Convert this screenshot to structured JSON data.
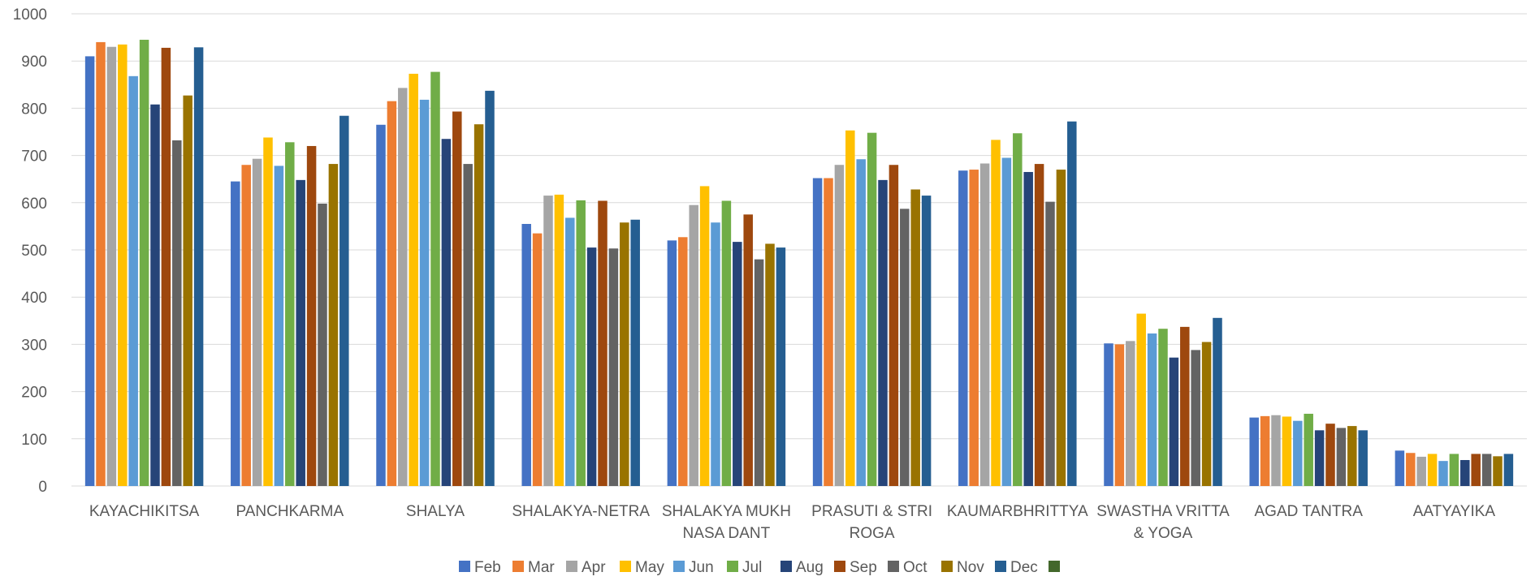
{
  "chart_data": {
    "type": "bar",
    "title": "",
    "xlabel": "",
    "ylabel": "",
    "ylim": [
      0,
      1000
    ],
    "yticks": [
      0,
      100,
      200,
      300,
      400,
      500,
      600,
      700,
      800,
      900,
      1000
    ],
    "grid": true,
    "legend_position": "bottom",
    "categories": [
      [
        "KAYACHIKITSA"
      ],
      [
        "PANCHKARMA"
      ],
      [
        "SHALYA"
      ],
      [
        "SHALAKYA-NETRA"
      ],
      [
        "SHALAKYA MUKH",
        "NASA DANT"
      ],
      [
        "PRASUTI & STRI",
        "ROGA"
      ],
      [
        "KAUMARBHRITTYA"
      ],
      [
        "SWASTHA VRITTA",
        "& YOGA"
      ],
      [
        "AGAD TANTRA"
      ],
      [
        "AATYAYIKA"
      ]
    ],
    "series": [
      {
        "name": "Feb",
        "color": "#4472c4",
        "values": [
          910,
          645,
          765,
          555,
          520,
          652,
          668,
          302,
          145,
          75
        ]
      },
      {
        "name": "Mar",
        "color": "#ed7d31",
        "values": [
          940,
          680,
          815,
          535,
          527,
          652,
          670,
          300,
          148,
          70
        ]
      },
      {
        "name": "Apr",
        "color": "#a5a5a5",
        "values": [
          930,
          693,
          843,
          615,
          595,
          680,
          683,
          307,
          150,
          62
        ]
      },
      {
        "name": "May",
        "color": "#ffc000",
        "values": [
          935,
          738,
          873,
          617,
          635,
          753,
          733,
          365,
          147,
          68
        ]
      },
      {
        "name": "Jun",
        "color": "#5b9bd5",
        "values": [
          868,
          678,
          818,
          568,
          558,
          692,
          695,
          323,
          138,
          53
        ]
      },
      {
        "name": "Jul",
        "color": "#70ad47",
        "values": [
          945,
          728,
          877,
          605,
          604,
          748,
          747,
          333,
          153,
          68
        ]
      },
      {
        "name": "Aug",
        "color": "#264478",
        "values": [
          808,
          648,
          735,
          505,
          517,
          648,
          665,
          272,
          118,
          55
        ]
      },
      {
        "name": "Sep",
        "color": "#9e480e",
        "values": [
          928,
          720,
          793,
          604,
          575,
          680,
          682,
          337,
          132,
          68
        ]
      },
      {
        "name": "Oct",
        "color": "#636363",
        "values": [
          732,
          598,
          682,
          503,
          480,
          587,
          602,
          288,
          123,
          68
        ]
      },
      {
        "name": "Nov",
        "color": "#997300",
        "values": [
          827,
          682,
          766,
          558,
          513,
          628,
          670,
          305,
          127,
          63
        ]
      },
      {
        "name": "Dec",
        "color": "#255e91",
        "values": [
          929,
          784,
          837,
          564,
          505,
          615,
          772,
          356,
          118,
          68
        ]
      },
      {
        "name": "",
        "color": "#43682b",
        "values": [
          null,
          null,
          null,
          null,
          null,
          null,
          null,
          null,
          null,
          null
        ]
      }
    ]
  }
}
